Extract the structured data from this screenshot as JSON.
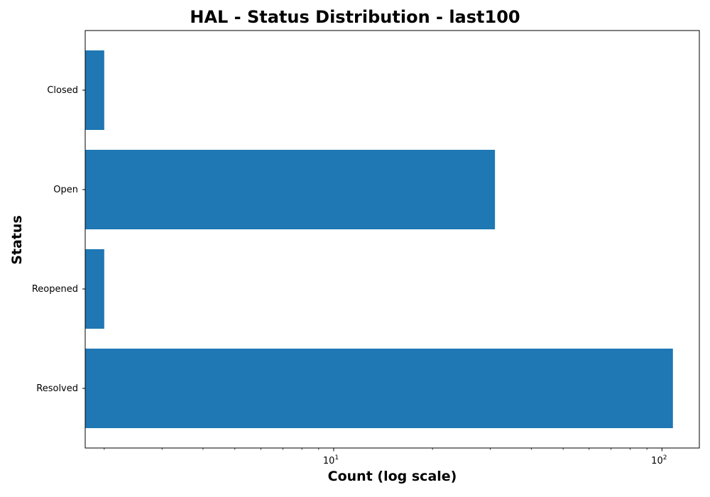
{
  "chart_data": {
    "type": "bar",
    "orientation": "horizontal",
    "title": "HAL - Status Distribution - last100",
    "xlabel": "Count (log scale)",
    "ylabel": "Status",
    "xscale": "log",
    "xlim": [
      1.75,
      130
    ],
    "xticks": [
      {
        "value": 10,
        "base": "10",
        "exp": "1"
      },
      {
        "value": 100,
        "base": "10",
        "exp": "2"
      }
    ],
    "categories": [
      "Resolved",
      "Reopened",
      "Open",
      "Closed"
    ],
    "values": [
      108,
      2,
      31,
      2
    ],
    "bar_color": "#1f77b4",
    "grid": false,
    "legend": "none"
  }
}
